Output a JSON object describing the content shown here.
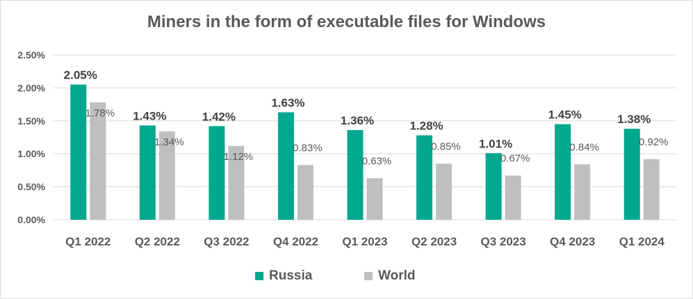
{
  "chart_data": {
    "type": "bar",
    "title": "Miners in the form of executable files for Windows",
    "categories": [
      "Q1 2022",
      "Q2 2022",
      "Q3 2022",
      "Q4 2022",
      "Q1 2023",
      "Q2 2023",
      "Q3 2023",
      "Q4 2023",
      "Q1 2024"
    ],
    "series": [
      {
        "name": "Russia",
        "color": "#00a88e",
        "values": [
          2.05,
          1.43,
          1.42,
          1.63,
          1.36,
          1.28,
          1.01,
          1.45,
          1.38
        ],
        "labels": [
          "2.05%",
          "1.43%",
          "1.42%",
          "1.63%",
          "1.36%",
          "1.28%",
          "1.01%",
          "1.45%",
          "1.38%"
        ]
      },
      {
        "name": "World",
        "color": "#bfbfbf",
        "values": [
          1.78,
          1.34,
          1.12,
          0.83,
          0.63,
          0.85,
          0.67,
          0.84,
          0.92
        ],
        "labels": [
          "1.78%",
          "1.34%",
          "1.12%",
          "0.83%",
          "0.63%",
          "0.85%",
          "0.67%",
          "0.84%",
          "0.92%"
        ]
      }
    ],
    "yticks": [
      "0.00%",
      "0.50%",
      "1.00%",
      "1.50%",
      "2.00%",
      "2.50%"
    ],
    "ylim": [
      0,
      2.5
    ],
    "grid": true,
    "legend": "bottom"
  }
}
